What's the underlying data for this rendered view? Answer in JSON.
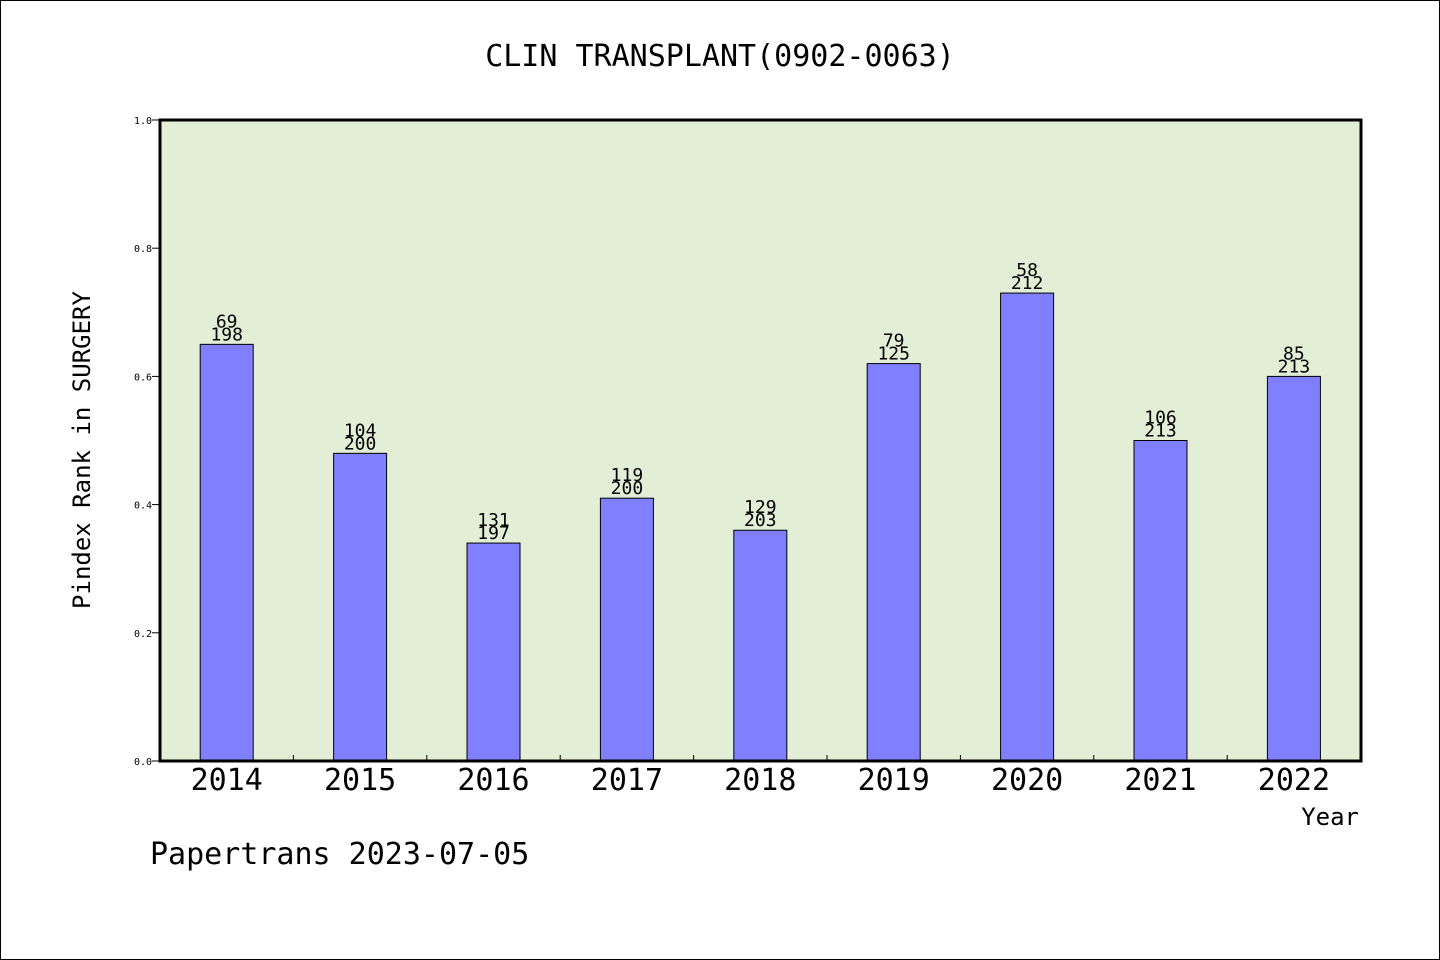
{
  "chart_data": {
    "type": "bar",
    "title": "CLIN TRANSPLANT(0902-0063)",
    "xlabel": "Year",
    "ylabel": "Pindex Rank in SURGERY",
    "categories": [
      "2014",
      "2015",
      "2016",
      "2017",
      "2018",
      "2019",
      "2020",
      "2021",
      "2022"
    ],
    "values": [
      0.65,
      0.48,
      0.34,
      0.41,
      0.36,
      0.62,
      0.73,
      0.5,
      0.6
    ],
    "labels_top": [
      "69",
      "104",
      "131",
      "119",
      "129",
      "79",
      "58",
      "106",
      "85"
    ],
    "labels_bottom": [
      "198",
      "200",
      "197",
      "200",
      "203",
      "125",
      "212",
      "213",
      "213"
    ],
    "ylim": [
      0,
      1.0
    ],
    "yticks": [
      "0.0",
      "0.2",
      "0.4",
      "0.6",
      "0.8",
      "1.0"
    ],
    "grid": false,
    "colors": {
      "bar": "#8080ff",
      "plot_background": "#e2efd6"
    }
  },
  "footer": "Papertrans 2023-07-05"
}
